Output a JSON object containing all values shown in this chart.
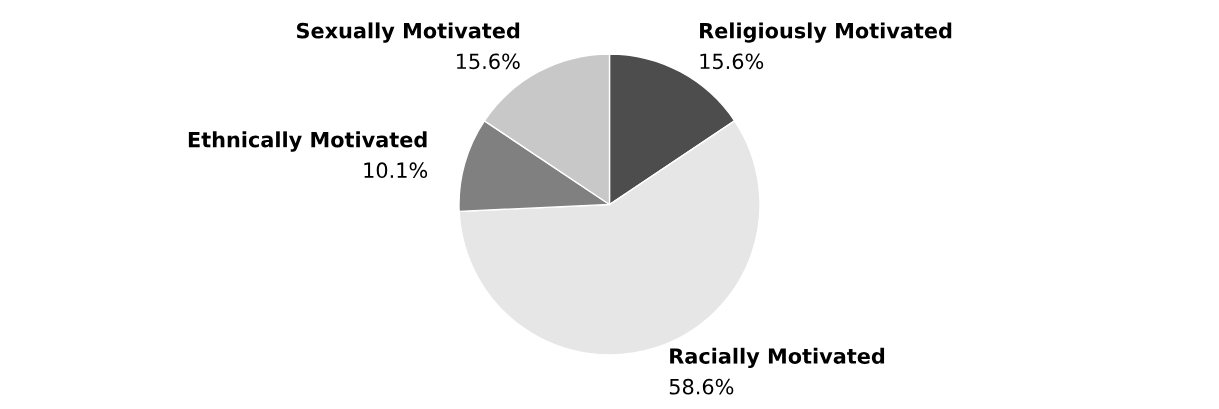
{
  "chart_data": {
    "type": "pie",
    "categories": [
      "Religiously Motivated",
      "Racially Motivated",
      "Ethnically Motivated",
      "Sexually Motivated"
    ],
    "values": [
      15.6,
      58.6,
      10.1,
      15.6
    ],
    "colors": [
      "#4d4d4d",
      "#e6e6e6",
      "#808080",
      "#c8c8c8"
    ],
    "value_labels": [
      "15.6%",
      "58.6%",
      "10.1%",
      "15.6%"
    ],
    "legend": false
  }
}
